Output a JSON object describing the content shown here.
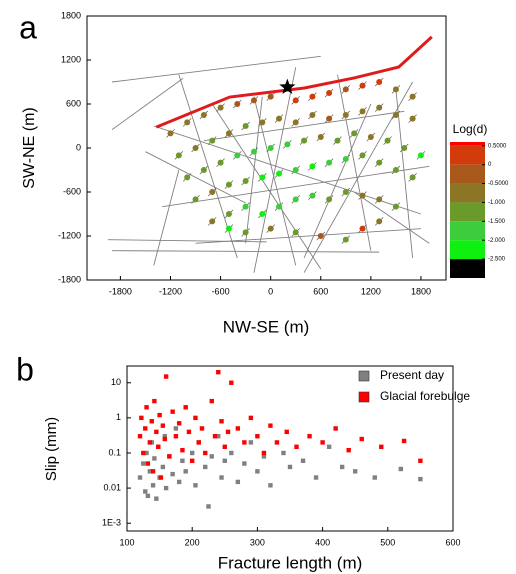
{
  "chart_data": [
    {
      "type": "map",
      "panel_label": "a",
      "xlabel": "NW-SE (m)",
      "ylabel": "SW-NE (m)",
      "xlim": [
        -2200,
        2100
      ],
      "ylim": [
        -1800,
        1800
      ],
      "xticks": [
        -1800,
        -1200,
        -600,
        0,
        600,
        1200,
        1800
      ],
      "yticks": [
        -1800,
        -1200,
        -600,
        0,
        600,
        1200,
        1800
      ],
      "fracture_color": "#808080",
      "fractures": [
        [
          -1900,
          900,
          600,
          1250
        ],
        [
          -1900,
          250,
          -1050,
          950
        ],
        [
          -1400,
          -1600,
          -1100,
          -300
        ],
        [
          -1950,
          -1250,
          -50,
          -1280
        ],
        [
          -1900,
          -1400,
          1300,
          -1420
        ],
        [
          -1500,
          -50,
          -300,
          -750
        ],
        [
          -1100,
          1000,
          -400,
          -1500
        ],
        [
          -700,
          600,
          600,
          -1650
        ],
        [
          -200,
          700,
          300,
          -1600
        ],
        [
          300,
          1100,
          -200,
          -1700
        ],
        [
          800,
          1000,
          1200,
          -1400
        ],
        [
          1200,
          600,
          400,
          -1500
        ],
        [
          1500,
          800,
          1700,
          -1500
        ],
        [
          -1300,
          -800,
          1900,
          -250
        ],
        [
          -1400,
          300,
          1800,
          -900
        ],
        [
          -900,
          -1300,
          1800,
          -1100
        ],
        [
          -800,
          100,
          1600,
          500
        ],
        [
          400,
          -1700,
          1700,
          900
        ],
        [
          -300,
          -1300,
          -100,
          700
        ],
        [
          1000,
          -600,
          1900,
          -1300
        ]
      ],
      "fault": {
        "color": "#e01b1b",
        "x": [
          -1370,
          -490,
          405,
          1000,
          1535,
          1930
        ],
        "y": [
          285,
          695,
          818,
          955,
          1105,
          1515
        ]
      },
      "star": [
        200,
        830
      ],
      "points": {
        "x": [
          -1200,
          -1000,
          -800,
          -600,
          -400,
          -200,
          0,
          300,
          500,
          700,
          900,
          1100,
          1300,
          1500,
          1700,
          -1100,
          -900,
          -700,
          -500,
          -300,
          -100,
          100,
          300,
          500,
          700,
          900,
          1100,
          1300,
          1500,
          1700,
          -1000,
          -800,
          -600,
          -400,
          -200,
          0,
          200,
          400,
          600,
          800,
          1000,
          1200,
          1400,
          1600,
          1800,
          -900,
          -700,
          -500,
          -300,
          -100,
          100,
          300,
          500,
          700,
          900,
          1100,
          1300,
          1500,
          1700,
          -700,
          -500,
          -300,
          -100,
          100,
          300,
          500,
          700,
          900,
          1100,
          1300,
          1500,
          -500,
          -300,
          0,
          300,
          600,
          900,
          1100,
          1300
        ],
        "y": [
          200,
          350,
          450,
          550,
          600,
          650,
          700,
          650,
          700,
          750,
          800,
          850,
          900,
          800,
          700,
          -100,
          0,
          100,
          200,
          300,
          350,
          400,
          350,
          450,
          400,
          450,
          500,
          550,
          450,
          400,
          -400,
          -300,
          -200,
          -100,
          -50,
          0,
          50,
          100,
          150,
          100,
          200,
          150,
          100,
          0,
          -100,
          -700,
          -600,
          -500,
          -450,
          -400,
          -350,
          -300,
          -250,
          -200,
          -150,
          -100,
          -200,
          -300,
          -400,
          -1000,
          -900,
          -800,
          -900,
          -800,
          -700,
          -650,
          -700,
          -600,
          -650,
          -700,
          -800,
          -1100,
          -1150,
          -1100,
          -1150,
          -1200,
          -1250,
          -1100,
          -1000
        ],
        "values": [
          -0.8,
          -0.9,
          -0.7,
          -0.6,
          -0.3,
          -0.5,
          -0.4,
          0.1,
          0.3,
          0.2,
          -0.2,
          0.4,
          0.2,
          -0.6,
          -0.8,
          -1.2,
          -1.0,
          -1.1,
          -0.9,
          -1.3,
          -0.8,
          -0.7,
          -0.6,
          -0.9,
          -0.5,
          -0.7,
          -0.8,
          -0.6,
          -1.0,
          -0.9,
          -1.3,
          -1.4,
          -1.2,
          -1.6,
          -1.8,
          -2.0,
          -1.9,
          -1.2,
          -1.0,
          -1.1,
          -1.3,
          -1.0,
          -1.2,
          -1.5,
          -2.1,
          -1.1,
          -0.8,
          -1.2,
          -1.4,
          -2.1,
          -2.2,
          -2.0,
          -2.1,
          -1.9,
          -1.7,
          -1.4,
          -1.1,
          -1.2,
          -1.3,
          -1.0,
          -1.5,
          -1.8,
          -2.2,
          -2.0,
          -1.9,
          -1.7,
          -1.3,
          -1.2,
          -1.0,
          -0.9,
          -1.1,
          -2.2,
          -1.3,
          -1.0,
          -1.2,
          -0.4,
          -1.1,
          0.3,
          -0.8
        ]
      },
      "colorbar": {
        "title": "Log(d)",
        "clim": [
          -3.0,
          0.6
        ],
        "ticks": [
          {
            "value": 0.5,
            "label": "0.5000"
          },
          0,
          {
            "value": -0.5,
            "label": "-0.5000"
          },
          {
            "value": -1,
            "label": "-1.000"
          },
          {
            "value": -1.5,
            "label": "-1.500"
          },
          {
            "value": -2,
            "label": "-2.000"
          },
          {
            "value": -2.5,
            "label": "-2.500"
          }
        ],
        "colors": [
          "#ff0000",
          "#d23c0a",
          "#a8581a",
          "#8c7626",
          "#6a9a2a",
          "#3ccc3c",
          "#10f010",
          "#000000"
        ]
      }
    },
    {
      "type": "scatter",
      "panel_label": "b",
      "xlabel": "Fracture length (m)",
      "ylabel": "Slip (mm)",
      "xlim": [
        100,
        600
      ],
      "ylim": [
        0.0006,
        30
      ],
      "ylog": true,
      "xticks": [
        100,
        200,
        300,
        400,
        500,
        600
      ],
      "yticks": [
        {
          "value": 0.001,
          "label": "1E-3"
        },
        0.01,
        0.1,
        1,
        10
      ],
      "series": [
        {
          "name": "Present day",
          "color": "#808080",
          "x": [
            120,
            125,
            128,
            130,
            132,
            135,
            138,
            140,
            142,
            145,
            148,
            150,
            155,
            158,
            160,
            165,
            170,
            175,
            180,
            185,
            190,
            200,
            205,
            210,
            220,
            225,
            230,
            240,
            245,
            250,
            260,
            270,
            280,
            290,
            300,
            310,
            320,
            340,
            350,
            370,
            390,
            410,
            430,
            450,
            480,
            520,
            550
          ],
          "values": [
            0.02,
            0.05,
            0.008,
            0.1,
            0.006,
            0.03,
            0.2,
            0.012,
            0.07,
            0.005,
            0.15,
            0.02,
            0.04,
            0.3,
            0.01,
            0.08,
            0.025,
            0.5,
            0.015,
            0.06,
            0.03,
            0.1,
            0.012,
            0.2,
            0.04,
            0.003,
            0.08,
            0.3,
            0.02,
            0.06,
            0.1,
            0.015,
            0.05,
            0.2,
            0.03,
            0.08,
            0.012,
            0.1,
            0.04,
            0.06,
            0.02,
            0.15,
            0.04,
            0.03,
            0.02,
            0.035,
            0.018
          ]
        },
        {
          "name": "Glacial forebulge",
          "color": "#ff0000",
          "x": [
            120,
            122,
            125,
            128,
            130,
            132,
            135,
            138,
            140,
            142,
            145,
            148,
            150,
            152,
            155,
            158,
            160,
            165,
            170,
            175,
            180,
            185,
            190,
            195,
            200,
            205,
            210,
            215,
            220,
            230,
            235,
            240,
            245,
            250,
            255,
            260,
            270,
            280,
            290,
            300,
            310,
            320,
            330,
            345,
            360,
            380,
            400,
            420,
            440,
            460,
            490,
            525,
            550
          ],
          "values": [
            0.3,
            1,
            0.1,
            0.5,
            2,
            0.05,
            0.2,
            0.8,
            0.03,
            3,
            0.4,
            0.15,
            1.2,
            0.02,
            0.6,
            0.25,
            15,
            0.08,
            1.5,
            0.3,
            0.7,
            0.12,
            2,
            0.4,
            0.06,
            1,
            0.2,
            0.5,
            0.1,
            3,
            0.3,
            20,
            0.8,
            0.15,
            0.4,
            10,
            0.5,
            0.2,
            1,
            0.3,
            0.1,
            0.6,
            0.2,
            0.4,
            0.15,
            0.3,
            0.2,
            0.5,
            0.12,
            0.25,
            0.15,
            0.22,
            0.06
          ]
        }
      ]
    }
  ]
}
